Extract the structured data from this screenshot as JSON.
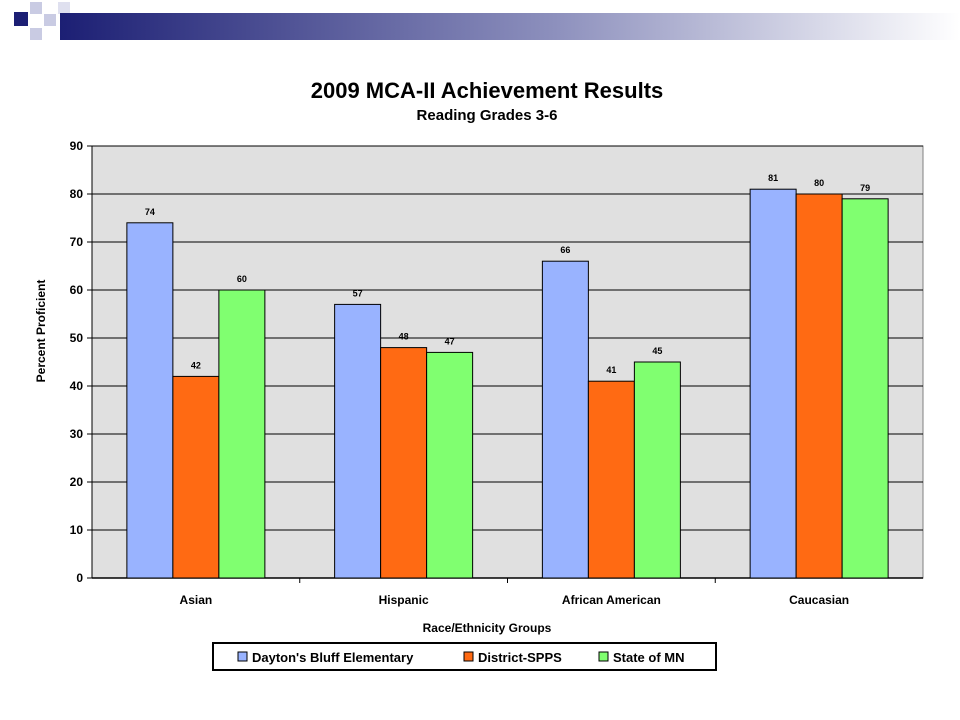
{
  "chart_data": {
    "type": "bar",
    "title": "2009 MCA-II Achievement Results",
    "subtitle": "Reading Grades 3-6",
    "xlabel": "Race/Ethnicity Groups",
    "ylabel": "Percent Proficient",
    "ylim": [
      0,
      90
    ],
    "yticks": [
      "0",
      "10",
      "20",
      "30",
      "40",
      "50",
      "60",
      "70",
      "80",
      "90"
    ],
    "categories": [
      "Asian",
      "Hispanic",
      "African American",
      "Caucasian"
    ],
    "series": [
      {
        "name": "Dayton's Bluff Elementary",
        "values": [
          74,
          57,
          66,
          81
        ],
        "color": "#99B3FF"
      },
      {
        "name": "District-SPPS",
        "values": [
          42,
          48,
          41,
          80
        ],
        "color": "#FF6A13"
      },
      {
        "name": "State of MN",
        "values": [
          60,
          47,
          45,
          79
        ],
        "color": "#80FF70"
      }
    ],
    "grid": true,
    "plot_background": "#E0E0E0",
    "legend_position": "bottom"
  }
}
